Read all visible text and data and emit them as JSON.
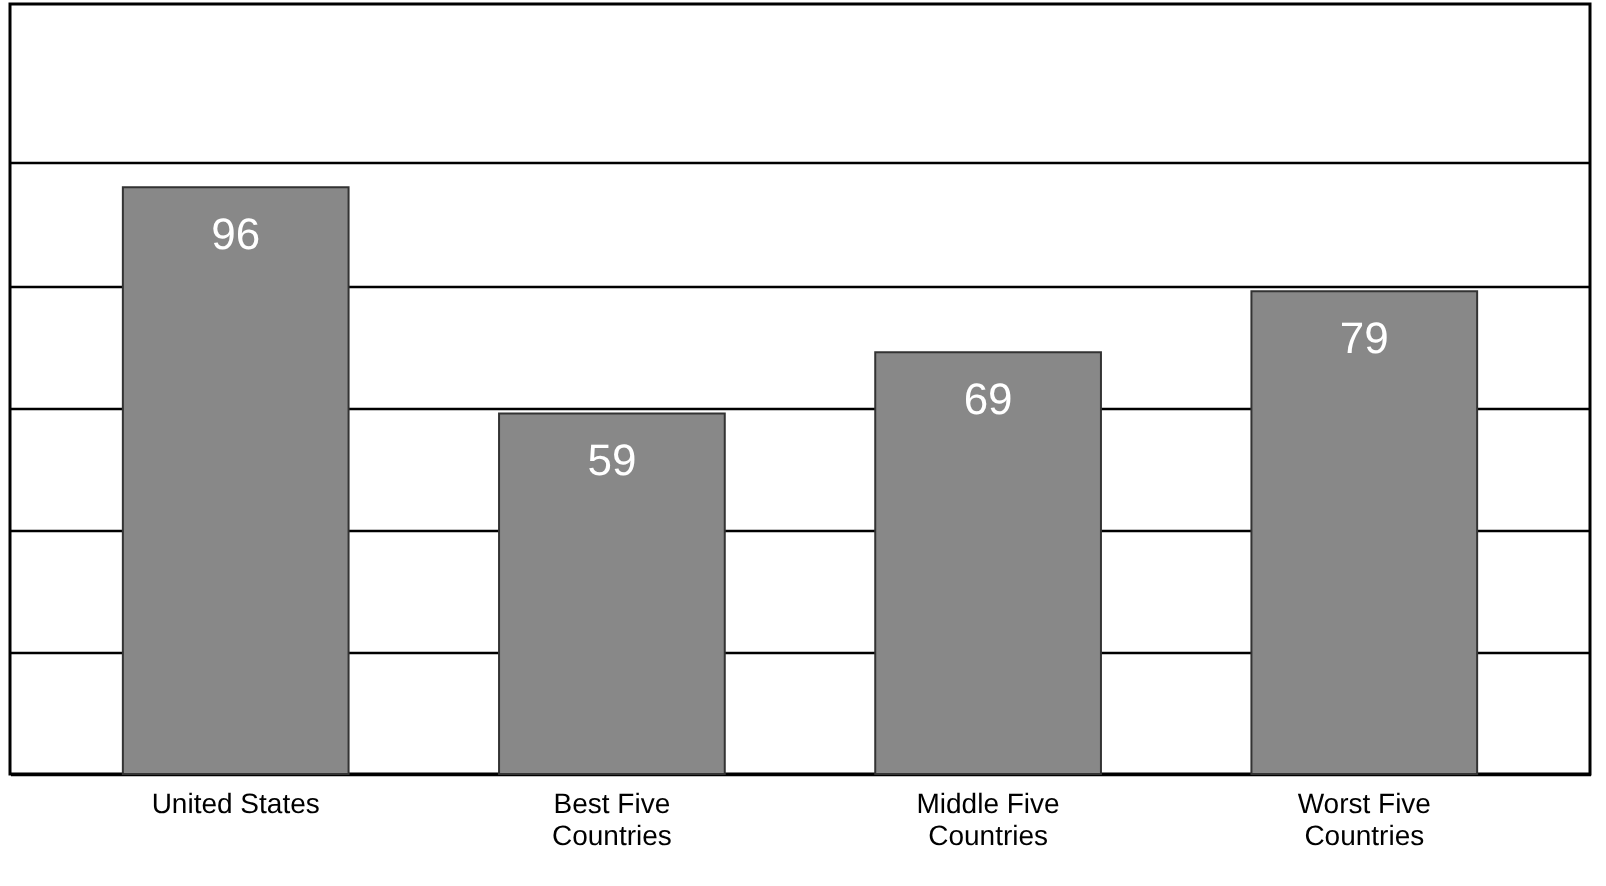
{
  "chart_data": {
    "type": "bar",
    "categories": [
      "United States",
      "Best Five Countries",
      "Middle Five Countries",
      "Worst Five Countries"
    ],
    "values": [
      96,
      59,
      69,
      79
    ],
    "color": "#888888",
    "ylim": [
      0,
      126
    ],
    "yticks": [
      {
        "value": 0,
        "label": null
      },
      {
        "value": 20,
        "label": null
      },
      {
        "value": 40,
        "label": null
      },
      {
        "value": 60,
        "label": null
      },
      {
        "value": 80,
        "label": null
      },
      {
        "value": 100,
        "label": null
      }
    ],
    "grid": "y",
    "tick_labels": "x",
    "data_labels": true
  }
}
